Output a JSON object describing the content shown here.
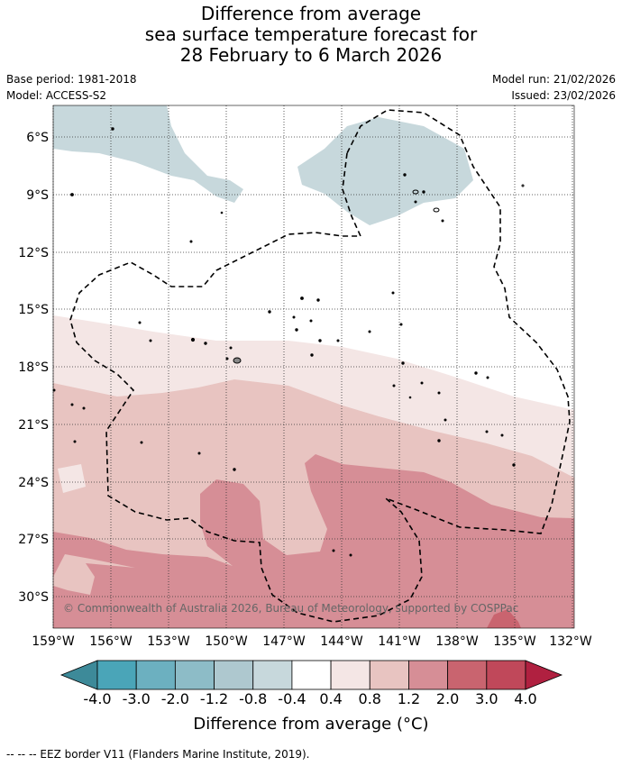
{
  "title": {
    "line1": "Difference from average",
    "line2": "sea surface temperature forecast for",
    "line3": "28 February to 6 March 2026"
  },
  "meta": {
    "base_period": "Base period: 1981-2018",
    "model": "Model: ACCESS-S2",
    "model_run": "Model run: 21/02/2026",
    "issued": "Issued: 23/02/2026"
  },
  "map": {
    "lat_labels": [
      "6°S",
      "9°S",
      "12°S",
      "15°S",
      "18°S",
      "21°S",
      "24°S",
      "27°S",
      "30°S"
    ],
    "lon_labels": [
      "159°W",
      "156°W",
      "153°W",
      "150°W",
      "147°W",
      "144°W",
      "141°W",
      "138°W",
      "135°W",
      "132°W"
    ],
    "copyright": "© Commonwealth of Australia 2026, Bureau of Meteorology, supported by COSPPac"
  },
  "colorbar": {
    "ticks": [
      "-4.0",
      "-3.0",
      "-2.0",
      "-1.2",
      "-0.8",
      "-0.4",
      "0.4",
      "0.8",
      "1.2",
      "2.0",
      "3.0",
      "4.0"
    ],
    "colors": [
      "#3d8a99",
      "#4aa5b8",
      "#6cb0c0",
      "#8dbcc7",
      "#aec8cf",
      "#c7d8dc",
      "#ffffff",
      "#f4e6e5",
      "#e8c4c1",
      "#d68e96",
      "#c9646f",
      "#c0485a",
      "#b02040"
    ],
    "title": "Difference from average (°C)"
  },
  "footer": {
    "eez_note": "--  --  -- EEZ border V11 (Flanders Marine Institute, 2019)."
  }
}
